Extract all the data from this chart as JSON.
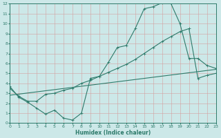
{
  "xlabel": "Humidex (Indice chaleur)",
  "bg_color": "#cce8e8",
  "grid_color": "#b8d8d8",
  "line_color": "#2d7a6a",
  "xlim": [
    0,
    23
  ],
  "ylim": [
    0,
    12
  ],
  "xticks": [
    0,
    1,
    2,
    3,
    4,
    5,
    6,
    7,
    8,
    9,
    10,
    11,
    12,
    13,
    14,
    15,
    16,
    17,
    18,
    19,
    20,
    21,
    22,
    23
  ],
  "yticks": [
    0,
    1,
    2,
    3,
    4,
    5,
    6,
    7,
    8,
    9,
    10,
    11,
    12
  ],
  "line1_x": [
    0,
    1,
    2,
    3,
    4,
    5,
    6,
    7,
    8,
    9,
    10,
    11,
    12,
    13,
    14,
    15,
    16,
    17,
    18,
    19,
    20,
    21,
    22,
    23
  ],
  "line1_y": [
    3.7,
    2.6,
    2.1,
    1.5,
    0.9,
    1.3,
    0.5,
    0.3,
    1.0,
    4.5,
    4.7,
    6.1,
    7.6,
    7.8,
    9.5,
    11.5,
    11.7,
    12.1,
    12.0,
    10.0,
    6.5,
    6.5,
    5.8,
    5.5
  ],
  "line2_x": [
    0,
    23
  ],
  "line2_y": [
    2.8,
    5.4
  ],
  "line3_x": [
    0,
    1,
    2,
    3,
    4,
    5,
    6,
    7,
    8,
    9,
    10,
    11,
    12,
    13,
    14,
    15,
    16,
    17,
    18,
    19,
    20,
    21,
    22,
    23
  ],
  "line3_y": [
    3.5,
    2.7,
    2.2,
    2.2,
    2.9,
    3.0,
    3.3,
    3.5,
    4.0,
    4.3,
    4.7,
    5.1,
    5.5,
    5.9,
    6.4,
    7.0,
    7.6,
    8.2,
    8.7,
    9.2,
    9.5,
    4.5,
    4.8,
    5.0
  ]
}
